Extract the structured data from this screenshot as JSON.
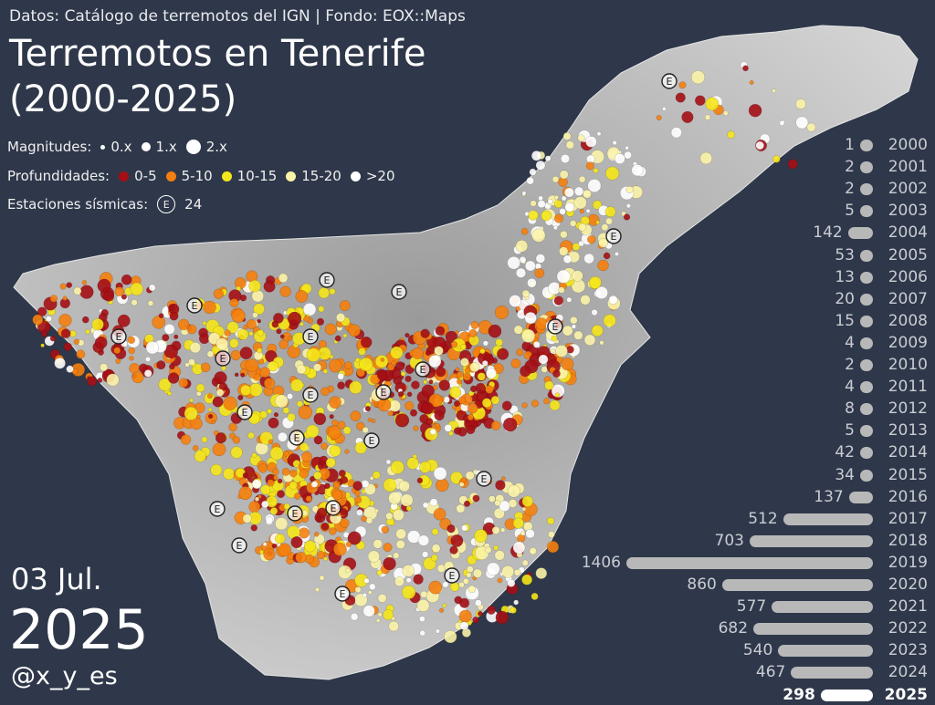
{
  "header": {
    "source": "Datos: Catálogo de terremotos del IGN | Fondo: EOX::Maps",
    "title_line1": "Terremotos en Tenerife",
    "title_line2": "(2000-2025)"
  },
  "legend": {
    "magnitudes_label": "Magnitudes:",
    "magnitudes": [
      "0.x",
      "1.x",
      "2.x"
    ],
    "depths_label": "Profundidades:",
    "depths": [
      {
        "label": "0-5",
        "color": "#a50f15"
      },
      {
        "label": "5-10",
        "color": "#f47f0e"
      },
      {
        "label": "10-15",
        "color": "#f5e61b"
      },
      {
        "label": "15-20",
        "color": "#fbf3a8"
      },
      {
        "label": ">20",
        "color": "#ffffff"
      }
    ],
    "stations_label": "Estaciones sísmicas:",
    "station_symbol": "E",
    "stations_count": "24"
  },
  "date": {
    "day": "03 Jul.",
    "year": "2025"
  },
  "handle": "@x_y_es",
  "years": [
    {
      "year": "2000",
      "count": 1
    },
    {
      "year": "2001",
      "count": 2
    },
    {
      "year": "2002",
      "count": 2
    },
    {
      "year": "2003",
      "count": 5
    },
    {
      "year": "2004",
      "count": 142
    },
    {
      "year": "2005",
      "count": 53
    },
    {
      "year": "2006",
      "count": 13
    },
    {
      "year": "2007",
      "count": 20
    },
    {
      "year": "2008",
      "count": 15
    },
    {
      "year": "2009",
      "count": 4
    },
    {
      "year": "2010",
      "count": 2
    },
    {
      "year": "2011",
      "count": 4
    },
    {
      "year": "2012",
      "count": 8
    },
    {
      "year": "2013",
      "count": 5
    },
    {
      "year": "2014",
      "count": 42
    },
    {
      "year": "2015",
      "count": 34
    },
    {
      "year": "2016",
      "count": 137
    },
    {
      "year": "2017",
      "count": 512
    },
    {
      "year": "2018",
      "count": 703
    },
    {
      "year": "2019",
      "count": 1406
    },
    {
      "year": "2020",
      "count": 860
    },
    {
      "year": "2021",
      "count": 577
    },
    {
      "year": "2022",
      "count": 682
    },
    {
      "year": "2023",
      "count": 540
    },
    {
      "year": "2024",
      "count": 467
    },
    {
      "year": "2025",
      "count": 298
    }
  ],
  "current_year": "2025",
  "colors": {
    "background": "#2f384a",
    "land": "#c4c4c4",
    "bar": "#b8b8b8",
    "bar_current": "#ffffff"
  }
}
